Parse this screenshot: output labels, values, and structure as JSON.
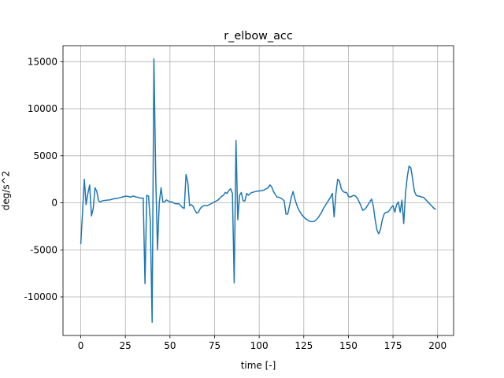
{
  "chart_data": {
    "type": "line",
    "title": "r_elbow_acc",
    "x_label": "time [-]",
    "y_label": "deg/s^2",
    "x": [
      0,
      1,
      2,
      3,
      4,
      5,
      6,
      7,
      8,
      9,
      10,
      11,
      12,
      13,
      14,
      15,
      16,
      17,
      18,
      19,
      20,
      21,
      22,
      23,
      24,
      25,
      26,
      27,
      28,
      29,
      30,
      31,
      32,
      33,
      34,
      35,
      36,
      37,
      38,
      39,
      40,
      41,
      42,
      43,
      44,
      45,
      46,
      47,
      48,
      49,
      50,
      51,
      52,
      53,
      54,
      55,
      56,
      57,
      58,
      59,
      60,
      61,
      62,
      63,
      64,
      65,
      66,
      67,
      68,
      69,
      70,
      71,
      72,
      73,
      74,
      75,
      76,
      77,
      78,
      79,
      80,
      81,
      82,
      83,
      84,
      85,
      86,
      87,
      88,
      89,
      90,
      91,
      92,
      93,
      94,
      95,
      96,
      97,
      98,
      99,
      100,
      101,
      102,
      103,
      104,
      105,
      106,
      107,
      108,
      109,
      110,
      111,
      112,
      113,
      114,
      115,
      116,
      117,
      118,
      119,
      120,
      121,
      122,
      123,
      124,
      125,
      126,
      127,
      128,
      129,
      130,
      131,
      132,
      133,
      134,
      135,
      136,
      137,
      138,
      139,
      140,
      141,
      142,
      143,
      144,
      145,
      146,
      147,
      148,
      149,
      150,
      151,
      152,
      153,
      154,
      155,
      156,
      157,
      158,
      159,
      160,
      161,
      162,
      163,
      164,
      165,
      166,
      167,
      168,
      169,
      170,
      171,
      172,
      173,
      174,
      175,
      176,
      177,
      178,
      179,
      180,
      181,
      182,
      183,
      184,
      185,
      186,
      187,
      188,
      189,
      190,
      191,
      192,
      193,
      194,
      195,
      196,
      197,
      198,
      199
    ],
    "values": [
      -4400,
      -1000,
      2500,
      -200,
      1000,
      1900,
      -1400,
      -600,
      1600,
      1200,
      200,
      100,
      200,
      250,
      250,
      300,
      300,
      350,
      400,
      450,
      450,
      500,
      550,
      600,
      650,
      700,
      700,
      650,
      600,
      700,
      700,
      600,
      600,
      500,
      500,
      500,
      -8600,
      800,
      700,
      -2000,
      -12700,
      15300,
      3000,
      -5000,
      0,
      1600,
      100,
      100,
      300,
      200,
      100,
      100,
      0,
      -100,
      -100,
      -100,
      -300,
      -500,
      -600,
      3000,
      2200,
      -300,
      -200,
      -400,
      -800,
      -1100,
      -1000,
      -600,
      -400,
      -300,
      -300,
      -300,
      -200,
      -100,
      0,
      100,
      200,
      300,
      500,
      700,
      800,
      1100,
      1000,
      1300,
      1500,
      1000,
      -8500,
      6600,
      -1800,
      800,
      1100,
      200,
      200,
      1000,
      800,
      1000,
      1100,
      1150,
      1200,
      1250,
      1250,
      1300,
      1300,
      1400,
      1500,
      1600,
      1900,
      1700,
      1200,
      900,
      600,
      600,
      500,
      400,
      200,
      -1200,
      -1200,
      -300,
      600,
      1200,
      400,
      -200,
      -700,
      -1000,
      -1300,
      -1500,
      -1700,
      -1800,
      -1950,
      -2000,
      -2000,
      -1950,
      -1800,
      -1600,
      -1300,
      -1000,
      -600,
      -300,
      0,
      300,
      600,
      1000,
      -1500,
      1000,
      2500,
      2300,
      1500,
      1200,
      1100,
      1100,
      700,
      600,
      700,
      800,
      700,
      500,
      100,
      -300,
      -800,
      -700,
      -500,
      -200,
      100,
      400,
      -400,
      -1800,
      -2900,
      -3300,
      -2800,
      -1800,
      -1200,
      -1000,
      -1000,
      -800,
      -500,
      -300,
      -1000,
      -200,
      100,
      -1000,
      300,
      -2200,
      1000,
      2800,
      3900,
      3700,
      2500,
      1200,
      800,
      700,
      700,
      600,
      600,
      400,
      200,
      0,
      -200,
      -400,
      -600,
      -700
    ],
    "color": "#1f77b4",
    "xlim": [
      -9.95,
      208.95
    ],
    "xticks": [
      0,
      25,
      50,
      75,
      100,
      125,
      150,
      175,
      200
    ],
    "ylim": [
      -14100,
      16700
    ],
    "yticks": [
      -10000,
      -5000,
      0,
      5000,
      10000,
      15000
    ],
    "grid": true
  }
}
